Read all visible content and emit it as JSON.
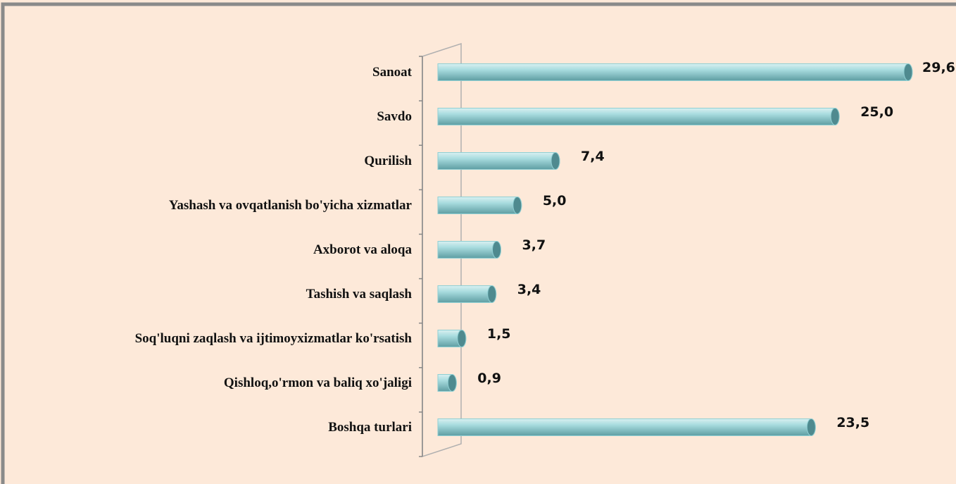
{
  "chart_data": {
    "type": "bar",
    "orientation": "horizontal",
    "categories": [
      "Sanoat",
      "Savdo",
      "Qurilish",
      "Yashash va ovqatlanish bo'yicha xizmatlar",
      "Axborot va aloqa",
      "Tashish va saqlash",
      "Soq'luqni zaqlash va ijtimoyxizmatlar ko'rsatish",
      "Qishloq,o'rmon va baliq xo'jaligi",
      "Boshqa turlari"
    ],
    "values": [
      29.6,
      25.0,
      7.4,
      5.0,
      3.7,
      3.4,
      1.5,
      0.9,
      23.5
    ],
    "value_labels": [
      "29,6",
      "25,0",
      "7,4",
      "5,0",
      "3,7",
      "3,4",
      "1,5",
      "0,9",
      "23,5"
    ],
    "color": "#8fcfd3"
  }
}
